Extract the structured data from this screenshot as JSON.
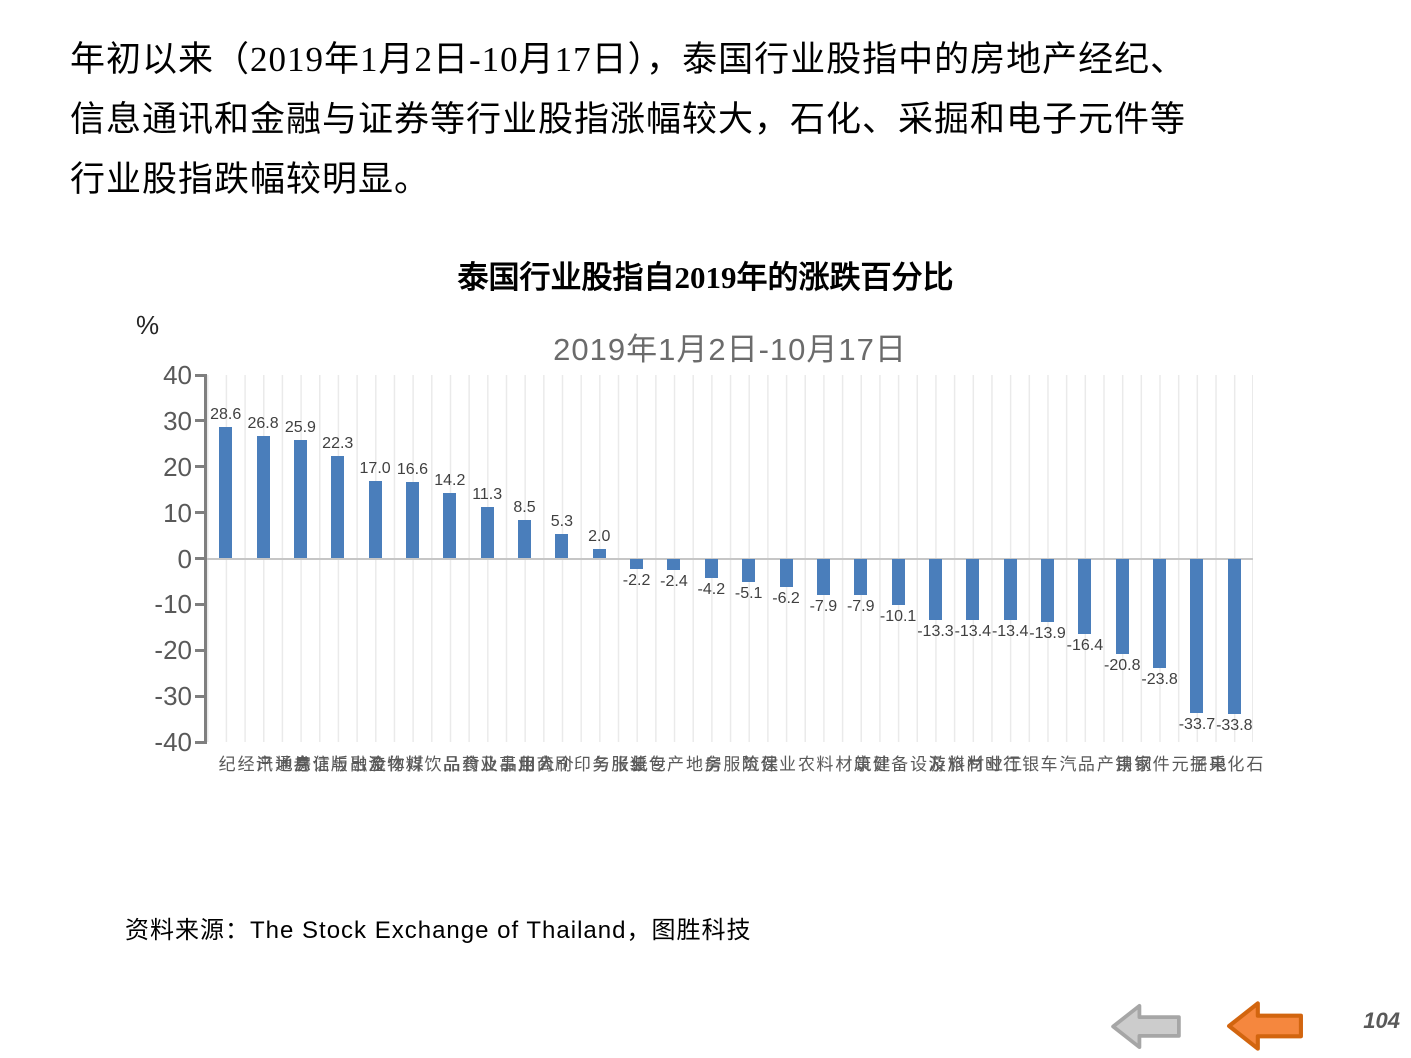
{
  "header": {
    "lines": [
      "年初以来（2019年1月2日-10月17日），泰国行业股指中的房地产经纪、",
      "信息通讯和金融与证券等行业股指涨幅较大，石化、采掘和电子元件等",
      "行业股指跌幅较明显。"
    ]
  },
  "chart_data": {
    "type": "bar",
    "title": "泰国行业股指自2019年的涨跌百分比",
    "subtitle": "2019年1月2日-10月17日",
    "ylabel": "%",
    "ylim": [
      -40,
      40
    ],
    "yticks": [
      40,
      30,
      20,
      10,
      0,
      -10,
      -20,
      -30,
      -40
    ],
    "grid": "vertical-light-halfstep",
    "legend": "none",
    "bar_color": "#4a7ebb",
    "categories": [
      "房地产经纪",
      "信息通讯",
      "金融与证券",
      "媒体及出版",
      "物流",
      "食品饮料",
      "个人用品及药品",
      "公用事业",
      "商业",
      "纸张与印刷",
      "专业服务",
      "包装",
      "房地产",
      "建筑服务",
      "保险",
      "农业",
      "建筑材料",
      "健康",
      "工业材料及设备",
      "旅游",
      "时尚",
      "银行",
      "汽车",
      "家用产品",
      "钢铁",
      "电子元件",
      "采掘",
      "石化"
    ],
    "values": [
      28.6,
      26.8,
      25.9,
      22.3,
      17.0,
      16.6,
      14.2,
      11.3,
      8.5,
      5.3,
      2.0,
      -2.2,
      -2.4,
      -4.2,
      -5.1,
      -6.2,
      -7.9,
      -7.9,
      -10.1,
      -13.3,
      -13.4,
      -13.4,
      -13.9,
      -16.4,
      -20.8,
      -23.8,
      -33.7,
      -33.8
    ]
  },
  "source": {
    "text": "资料来源：The Stock Exchange of Thailand，图胜科技"
  },
  "footer": {
    "page_number": "104",
    "gray_arrow_fill": "#cccccc",
    "gray_arrow_stroke": "#a6a6a6",
    "orange_arrow_fill": "#f5873e",
    "orange_arrow_stroke": "#d2650f"
  }
}
